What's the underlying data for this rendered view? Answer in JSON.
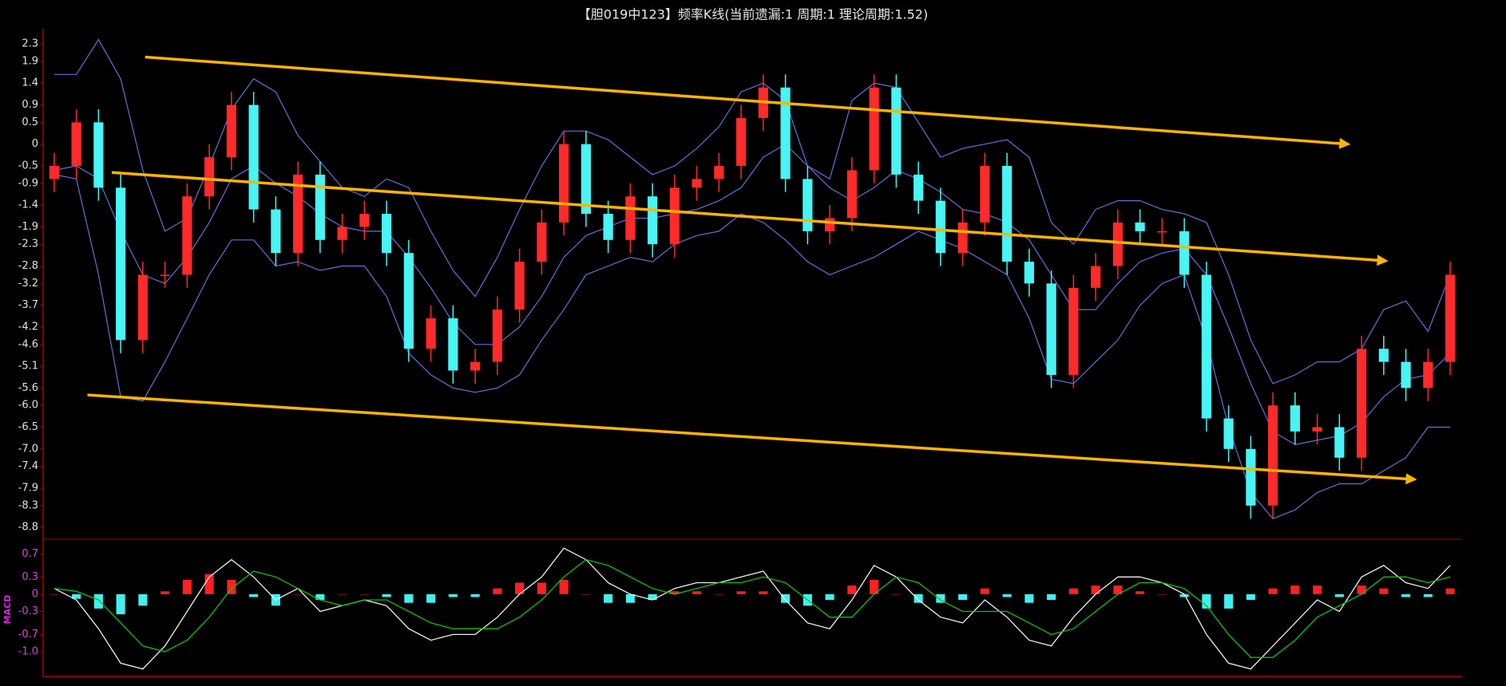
{
  "chart_data": [
    {
      "type": "candlestick",
      "title": "【胆019中123】频率K线(当前遗漏:1 周期:1 理论周期:1.52)",
      "ylim": [
        -9.0,
        2.65
      ],
      "yticks": [
        2.3,
        1.9,
        1.4,
        0.9,
        0.5,
        0,
        -0.5,
        -0.9,
        -1.4,
        -1.9,
        -2.3,
        -2.8,
        -3.2,
        -3.7,
        -4.2,
        -4.6,
        -5.1,
        -5.6,
        {
          "value": -6,
          "label": "-6.0"
        },
        -6.5,
        {
          "value": -7,
          "label": "-7.0"
        },
        -7.4,
        -7.9,
        -8.3,
        -8.8
      ],
      "up_color": "#ff2a2a",
      "down_color": "#48f4f4",
      "open": [
        -0.8,
        -0.5,
        0.5,
        -1.0,
        -4.5,
        -3.0,
        -3.0,
        -1.2,
        -0.3,
        0.9,
        -1.5,
        -2.5,
        -0.7,
        -2.2,
        -1.9,
        -1.6,
        -2.5,
        -4.7,
        -4.0,
        -5.2,
        -5.0,
        -3.8,
        -2.7,
        -1.8,
        0.0,
        -1.6,
        -2.2,
        -1.2,
        -2.3,
        -1.0,
        -0.8,
        -0.5,
        0.6,
        1.3,
        -0.8,
        -2.0,
        -1.7,
        -0.6,
        1.3,
        -0.7,
        -1.3,
        -2.5,
        -1.8,
        -0.5,
        -2.7,
        -3.2,
        -5.3,
        -3.3,
        -2.8,
        -1.8,
        -2.0,
        -2.0,
        -3.0,
        -6.3,
        -7.0,
        -8.3,
        -6.0,
        -6.6,
        -6.5,
        -7.2,
        -4.7,
        -5.0,
        -5.6,
        -5.0
      ],
      "high": [
        -0.2,
        0.8,
        0.8,
        -0.7,
        -2.7,
        -2.7,
        -0.9,
        0.0,
        1.2,
        1.2,
        -1.2,
        -0.4,
        -0.4,
        -1.6,
        -1.3,
        -1.3,
        -2.2,
        -3.7,
        -3.7,
        -4.7,
        -3.5,
        -2.4,
        -1.5,
        0.3,
        0.3,
        -1.3,
        -0.9,
        -0.9,
        -0.7,
        -0.5,
        -0.2,
        0.9,
        1.6,
        1.6,
        -0.5,
        -1.4,
        -0.3,
        1.6,
        1.6,
        -0.4,
        -1.0,
        -1.5,
        -0.2,
        -0.2,
        -2.4,
        -2.9,
        -3.0,
        -2.5,
        -1.5,
        -1.5,
        -1.7,
        -1.7,
        -2.7,
        -6.0,
        -6.7,
        -5.7,
        -5.7,
        -6.2,
        -6.2,
        -4.4,
        -4.4,
        -4.7,
        -4.7,
        -2.7
      ],
      "low": [
        -1.1,
        -0.8,
        -1.3,
        -4.8,
        -4.8,
        -3.3,
        -3.3,
        -1.5,
        -0.6,
        -1.8,
        -2.8,
        -2.8,
        -2.5,
        -2.5,
        -2.2,
        -2.8,
        -5.0,
        -5.0,
        -5.5,
        -5.5,
        -5.3,
        -4.1,
        -3.0,
        -2.1,
        -1.9,
        -2.5,
        -2.5,
        -2.6,
        -2.6,
        -1.3,
        -1.1,
        -0.8,
        0.3,
        -1.1,
        -2.3,
        -2.3,
        -2.0,
        -0.9,
        -1.0,
        -1.6,
        -2.8,
        -2.8,
        -2.1,
        -3.0,
        -3.5,
        -5.6,
        -5.6,
        -3.6,
        -3.1,
        -2.3,
        -2.3,
        -3.3,
        -6.6,
        -7.3,
        -8.6,
        -8.6,
        -6.9,
        -6.9,
        -7.5,
        -7.5,
        -5.3,
        -5.9,
        -5.9,
        -5.3
      ],
      "close": [
        -0.5,
        0.5,
        -1.0,
        -4.5,
        -3.0,
        -3.0,
        -1.2,
        -0.3,
        0.9,
        -1.5,
        -2.5,
        -0.7,
        -2.2,
        -1.9,
        -1.6,
        -2.5,
        -4.7,
        -4.0,
        -5.2,
        -5.0,
        -3.8,
        -2.7,
        -1.8,
        0.0,
        -1.6,
        -2.2,
        -1.2,
        -2.3,
        -1.0,
        -0.8,
        -0.5,
        0.6,
        1.3,
        -0.8,
        -2.0,
        -1.7,
        -0.6,
        1.3,
        -0.7,
        -1.3,
        -2.5,
        -1.8,
        -0.5,
        -2.7,
        -3.2,
        -5.3,
        -3.3,
        -2.8,
        -1.8,
        -2.0,
        -2.0,
        -3.0,
        -6.3,
        -7.0,
        -8.3,
        -6.0,
        -6.6,
        -6.5,
        -7.2,
        -4.7,
        -5.0,
        -5.6,
        -5.0,
        -3.0
      ],
      "overlays": [
        {
          "color": "#6b6bdc",
          "values": [
            1.6,
            1.6,
            2.4,
            1.5,
            -0.6,
            -2.0,
            -1.7,
            -0.5,
            0.8,
            1.5,
            1.2,
            0.2,
            -0.4,
            -1.0,
            -1.2,
            -0.8,
            -1.0,
            -2.0,
            -2.9,
            -3.5,
            -2.6,
            -1.5,
            -0.5,
            0.3,
            0.3,
            0.1,
            -0.3,
            -0.7,
            -0.5,
            -0.1,
            0.4,
            1.2,
            1.4,
            1.0,
            -0.5,
            -0.8,
            1.0,
            1.4,
            1.3,
            0.5,
            -0.3,
            -0.1,
            0.0,
            0.1,
            -0.3,
            -1.8,
            -2.3,
            -1.5,
            -1.3,
            -1.3,
            -1.5,
            -1.6,
            -1.8,
            -3.0,
            -4.5,
            -5.5,
            -5.3,
            -5.0,
            -5.0,
            -4.7,
            -3.8,
            -3.6,
            -4.3,
            -3.0
          ]
        },
        {
          "color": "#6b6bdc",
          "values": [
            -0.6,
            -0.5,
            -0.8,
            -2.0,
            -3.0,
            -3.2,
            -2.6,
            -1.8,
            -0.8,
            -0.5,
            -0.9,
            -1.2,
            -1.6,
            -1.9,
            -2.0,
            -2.0,
            -2.6,
            -3.3,
            -4.1,
            -4.6,
            -4.6,
            -4.2,
            -3.5,
            -2.6,
            -2.1,
            -1.9,
            -1.7,
            -1.7,
            -1.6,
            -1.5,
            -1.3,
            -1.0,
            -0.3,
            0.0,
            -0.5,
            -1.0,
            -1.3,
            -1.0,
            -0.6,
            -0.8,
            -1.1,
            -1.5,
            -1.6,
            -1.8,
            -2.2,
            -3.0,
            -3.8,
            -3.8,
            -3.2,
            -2.7,
            -2.5,
            -2.4,
            -3.0,
            -4.2,
            -5.5,
            -6.6,
            -6.9,
            -6.8,
            -6.7,
            -6.4,
            -5.8,
            -5.4,
            -5.3,
            -4.8
          ]
        },
        {
          "color": "#6b6bdc",
          "values": [
            -0.7,
            -0.8,
            -3.0,
            -5.8,
            -5.9,
            -5.0,
            -4.0,
            -3.0,
            -2.2,
            -2.2,
            -2.8,
            -2.7,
            -2.9,
            -2.8,
            -2.8,
            -3.5,
            -4.8,
            -5.3,
            -5.6,
            -5.7,
            -5.6,
            -5.3,
            -4.5,
            -3.8,
            -3.0,
            -2.8,
            -2.6,
            -2.7,
            -2.3,
            -2.1,
            -2.0,
            -1.6,
            -1.8,
            -2.2,
            -2.7,
            -3.0,
            -2.8,
            -2.6,
            -2.3,
            -2.0,
            -2.2,
            -2.4,
            -2.7,
            -3.0,
            -4.0,
            -5.4,
            -5.5,
            -5.0,
            -4.5,
            -3.7,
            -3.2,
            -3.0,
            -4.5,
            -6.5,
            -8.0,
            -8.6,
            -8.4,
            -8.0,
            -7.8,
            -7.8,
            -7.5,
            -7.2,
            -6.5,
            -6.5
          ]
        }
      ],
      "trend_color": "#ffb400",
      "trend_lines": [
        {
          "x": [
            4.1,
            58.4
          ],
          "y": [
            2.0,
            0.0
          ]
        },
        {
          "x": [
            2.6,
            60.1
          ],
          "y": [
            -0.65,
            -2.68
          ]
        },
        {
          "x": [
            1.5,
            61.4
          ],
          "y": [
            -5.76,
            -7.7
          ]
        }
      ]
    },
    {
      "type": "macd",
      "ylabel": "MACD",
      "ylim": [
        -1.43,
        0.9
      ],
      "yticks": [
        0.7,
        0.3,
        0,
        -0.3,
        -0.7,
        {
          "value": -1,
          "label": "-1.0"
        }
      ],
      "series": [
        {
          "color": "#f0f0f0",
          "values": [
            0.1,
            -0.1,
            -0.6,
            -1.2,
            -1.3,
            -0.9,
            -0.3,
            0.3,
            0.6,
            0.3,
            -0.1,
            0.1,
            -0.3,
            -0.2,
            -0.1,
            -0.2,
            -0.6,
            -0.8,
            -0.7,
            -0.7,
            -0.4,
            0.0,
            0.3,
            0.8,
            0.6,
            0.2,
            0.0,
            -0.1,
            0.1,
            0.2,
            0.2,
            0.3,
            0.4,
            -0.1,
            -0.5,
            -0.6,
            -0.1,
            0.5,
            0.3,
            -0.1,
            -0.4,
            -0.5,
            -0.1,
            -0.4,
            -0.8,
            -0.9,
            -0.4,
            0.0,
            0.3,
            0.3,
            0.2,
            0.0,
            -0.7,
            -1.2,
            -1.3,
            -0.9,
            -0.5,
            -0.1,
            -0.3,
            0.3,
            0.5,
            0.2,
            0.1,
            0.5
          ]
        },
        {
          "color": "#10c010",
          "values": [
            0.1,
            0.05,
            -0.1,
            -0.5,
            -0.9,
            -1.0,
            -0.8,
            -0.4,
            0.1,
            0.4,
            0.3,
            0.1,
            -0.1,
            -0.2,
            -0.1,
            -0.1,
            -0.3,
            -0.5,
            -0.6,
            -0.6,
            -0.6,
            -0.4,
            -0.1,
            0.3,
            0.6,
            0.5,
            0.3,
            0.1,
            0.0,
            0.1,
            0.2,
            0.2,
            0.3,
            0.2,
            -0.1,
            -0.4,
            -0.4,
            0.0,
            0.3,
            0.2,
            -0.1,
            -0.3,
            -0.3,
            -0.3,
            -0.5,
            -0.7,
            -0.6,
            -0.3,
            0.0,
            0.2,
            0.2,
            0.1,
            -0.2,
            -0.7,
            -1.1,
            -1.1,
            -0.8,
            -0.4,
            -0.2,
            0.0,
            0.3,
            0.3,
            0.2,
            0.3
          ]
        }
      ],
      "histogram": {
        "up_color": "#ff2020",
        "down_color": "#40f0f0",
        "values": [
          0.0,
          -0.08,
          -0.25,
          -0.35,
          -0.2,
          0.05,
          0.25,
          0.35,
          0.25,
          -0.05,
          -0.2,
          0.0,
          -0.1,
          0.0,
          0.0,
          -0.05,
          -0.15,
          -0.15,
          -0.05,
          -0.05,
          0.1,
          0.2,
          0.2,
          0.25,
          0.0,
          -0.15,
          -0.15,
          -0.1,
          0.05,
          0.05,
          0.0,
          0.05,
          0.05,
          -0.15,
          -0.2,
          -0.1,
          0.15,
          0.25,
          0.0,
          -0.15,
          -0.15,
          -0.1,
          0.1,
          -0.05,
          -0.15,
          -0.1,
          0.1,
          0.15,
          0.15,
          0.05,
          0.0,
          -0.05,
          -0.25,
          -0.25,
          -0.1,
          0.1,
          0.15,
          0.15,
          -0.05,
          0.15,
          0.1,
          -0.05,
          -0.05,
          0.1
        ]
      }
    }
  ]
}
